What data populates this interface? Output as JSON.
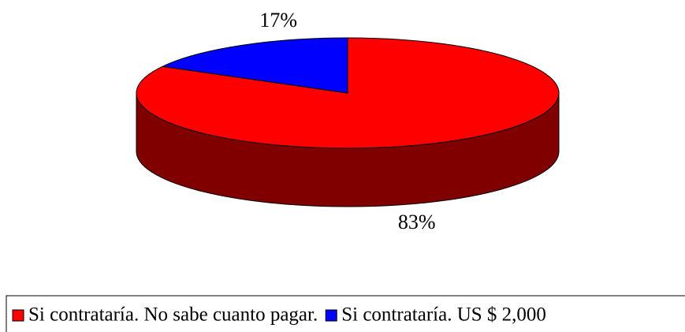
{
  "chart_data": {
    "type": "pie",
    "categories": [
      "Si contrataría. No sabe cuanto pagar.",
      "Si contrataría. US $ 2,000"
    ],
    "values": [
      83,
      17
    ],
    "value_labels": [
      "83%",
      "17%"
    ],
    "colors": [
      "#ff0000",
      "#0000ff"
    ],
    "legend": "bottom"
  }
}
